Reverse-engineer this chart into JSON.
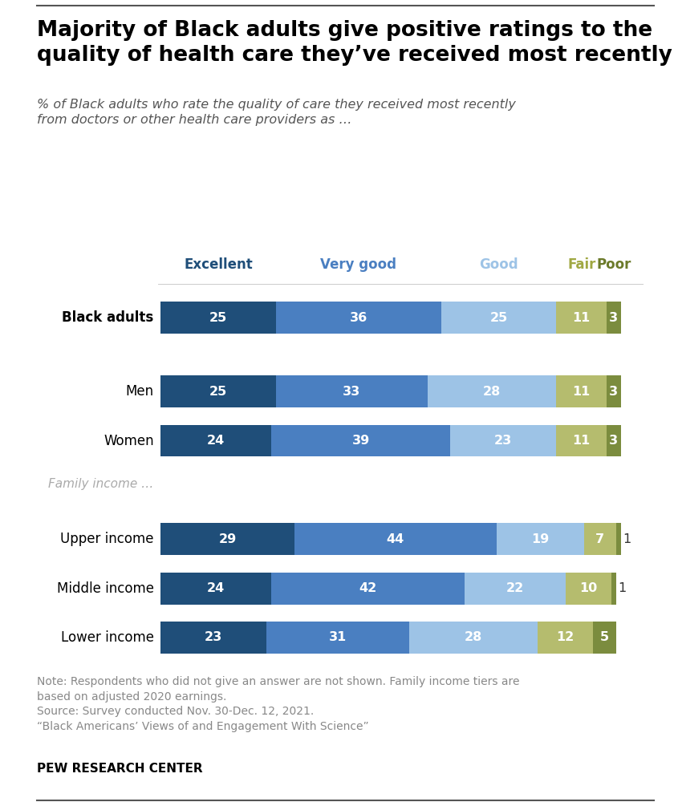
{
  "title": "Majority of Black adults give positive ratings to the\nquality of health care they’ve received most recently",
  "subtitle": "% of Black adults who rate the quality of care they received most recently\nfrom doctors or other health care providers as …",
  "groups": [
    {
      "label": "Black adults",
      "values": [
        25,
        36,
        25,
        11,
        3
      ],
      "group": "overall"
    },
    {
      "label": "Men",
      "values": [
        25,
        33,
        28,
        11,
        3
      ],
      "group": "gender"
    },
    {
      "label": "Women",
      "values": [
        24,
        39,
        23,
        11,
        3
      ],
      "group": "gender"
    },
    {
      "label": "Upper income",
      "values": [
        29,
        44,
        19,
        7,
        1
      ],
      "group": "income"
    },
    {
      "label": "Middle income",
      "values": [
        24,
        42,
        22,
        10,
        1
      ],
      "group": "income"
    },
    {
      "label": "Lower income",
      "values": [
        23,
        31,
        28,
        12,
        5
      ],
      "group": "income"
    }
  ],
  "legend_labels": [
    "Excellent",
    "Very good",
    "Good",
    "Fair",
    "Poor"
  ],
  "bar_colors": [
    "#1f4e79",
    "#4a7fc1",
    "#9dc3e6",
    "#b5bc6e",
    "#7b8c3e"
  ],
  "legend_text_colors": [
    "#1f4e79",
    "#4a7fc1",
    "#9dc3e6",
    "#a0a843",
    "#6b7a2a"
  ],
  "family_income_label": "Family income …",
  "note_text": "Note: Respondents who did not give an answer are not shown. Family income tiers are\nbased on adjusted 2020 earnings.\nSource: Survey conducted Nov. 30-Dec. 12, 2021.\n“Black Americans’ Views of and Engagement With Science”",
  "footer": "PEW RESEARCH CENTER",
  "background_color": "#ffffff"
}
